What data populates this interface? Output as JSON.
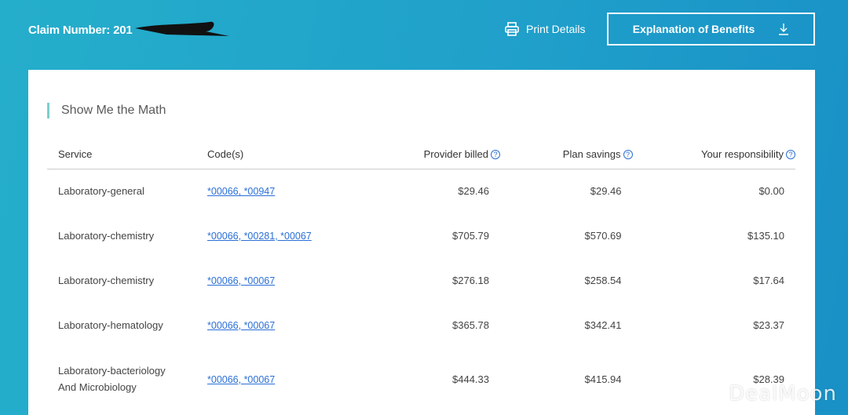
{
  "header": {
    "claim_label": "Claim Number:",
    "claim_value": "201",
    "print_label": "Print Details",
    "eob_label": "Explanation of Benefits"
  },
  "section": {
    "title": "Show Me the Math"
  },
  "table": {
    "columns": [
      "Service",
      "Code(s)",
      "Provider billed",
      "Plan savings",
      "Your responsibility"
    ],
    "rows": [
      {
        "service": "Laboratory-general",
        "codes": "*00066, *00947",
        "billed": "$29.46",
        "savings": "$29.46",
        "resp": "$0.00"
      },
      {
        "service": "Laboratory-chemistry",
        "codes": "*00066, *00281, *00067",
        "billed": "$705.79",
        "savings": "$570.69",
        "resp": "$135.10"
      },
      {
        "service": "Laboratory-chemistry",
        "codes": "*00066, *00067",
        "billed": "$276.18",
        "savings": "$258.54",
        "resp": "$17.64"
      },
      {
        "service": "Laboratory-hematology",
        "codes": "*00066, *00067",
        "billed": "$365.78",
        "savings": "$342.41",
        "resp": "$23.37"
      },
      {
        "service": "Laboratory-bacteriology And Microbiology",
        "codes": "*00066, *00067",
        "billed": "$444.33",
        "savings": "$415.94",
        "resp": "$28.39"
      }
    ]
  },
  "watermark": "DealMoon",
  "colors": {
    "accent": "#2a6fd6",
    "header_bg": "#1f9fca",
    "title_bar": "#7ccfcc"
  },
  "icons": {
    "print": "printer-icon",
    "download": "download-icon",
    "help": "help-circle-icon"
  }
}
